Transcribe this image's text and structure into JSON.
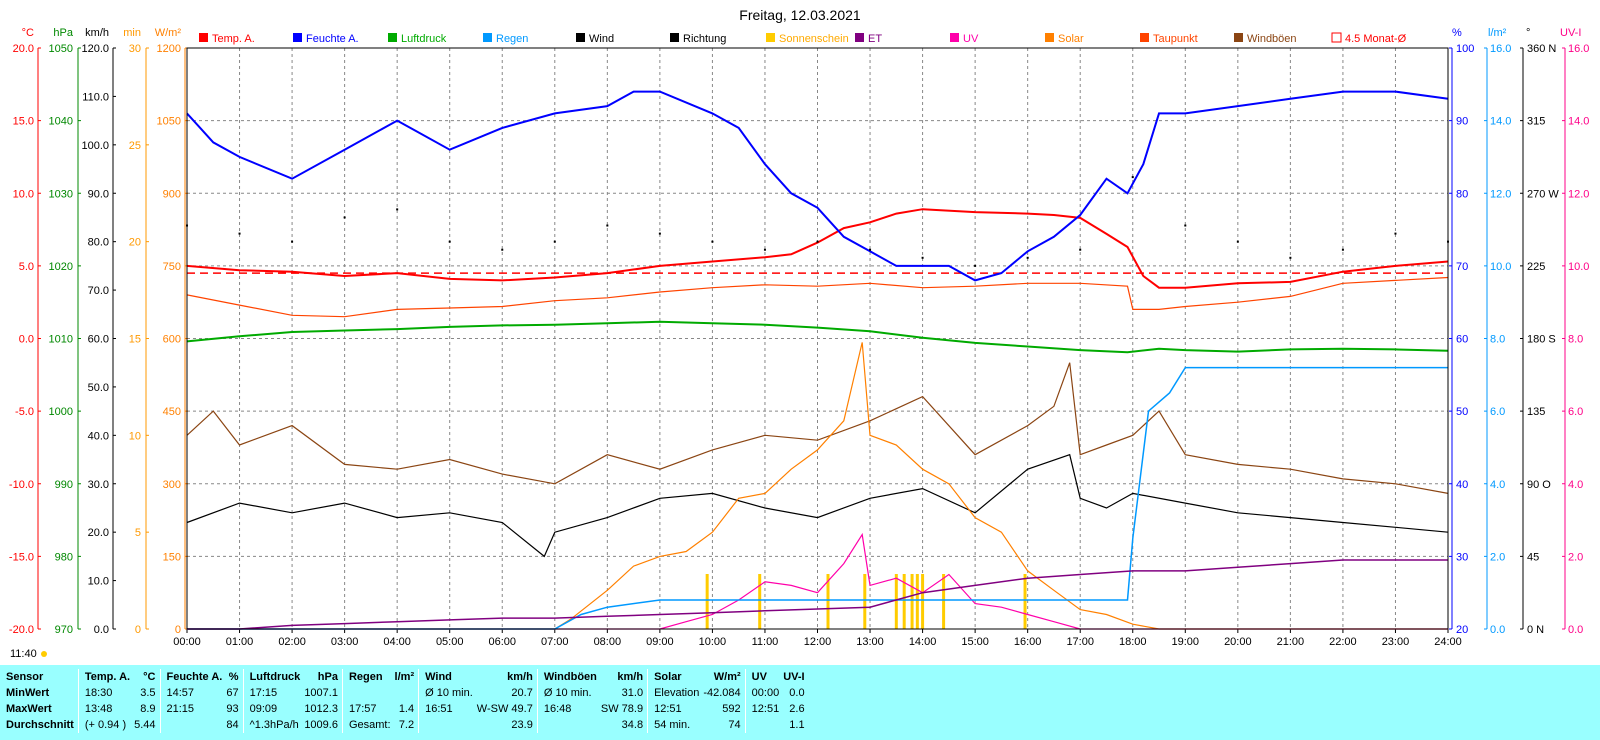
{
  "title": "Freitag, 12.03.2021",
  "time_label": "11:40",
  "legend": [
    {
      "label": "Temp. A.",
      "color": "#ff0000"
    },
    {
      "label": "Feuchte A.",
      "color": "#0000ff"
    },
    {
      "label": "Luftdruck",
      "color": "#00aa00"
    },
    {
      "label": "Regen",
      "color": "#0099ff"
    },
    {
      "label": "Wind",
      "color": "#000000"
    },
    {
      "label": "Richtung",
      "color": "#000000"
    },
    {
      "label": "Sonnenschein",
      "color": "#ffcc00"
    },
    {
      "label": "ET",
      "color": "#800080"
    },
    {
      "label": "UV",
      "color": "#ff00aa"
    },
    {
      "label": "Solar",
      "color": "#ff8000"
    },
    {
      "label": "Taupunkt",
      "color": "#ff4400"
    },
    {
      "label": "Windböen",
      "color": "#8b4513"
    },
    {
      "label": "4.5 Monat-Ø",
      "color": "#ff0000"
    }
  ],
  "axes": {
    "left": [
      {
        "unit": "°C",
        "color": "#ff0000",
        "ticks": [
          "20.0",
          "15.0",
          "10.0",
          "5.0",
          "0.0",
          "-5.0",
          "-10.0",
          "-15.0",
          "-20.0"
        ]
      },
      {
        "unit": "hPa",
        "color": "#008800",
        "ticks": [
          "1050",
          "1040",
          "1030",
          "1020",
          "1010",
          "1000",
          "990",
          "980",
          "970"
        ]
      },
      {
        "unit": "km/h",
        "color": "#000000",
        "ticks": [
          "120.0",
          "110.0",
          "100.0",
          "90.0",
          "80.0",
          "70.0",
          "60.0",
          "50.0",
          "40.0",
          "30.0",
          "20.0",
          "10.0",
          "0.0"
        ]
      },
      {
        "unit": "min",
        "color": "#ff9900",
        "ticks": [
          "30",
          "25",
          "20",
          "15",
          "10",
          "5",
          "0"
        ]
      },
      {
        "unit": "W/m²",
        "color": "#ff8000",
        "ticks": [
          "1200",
          "1050",
          "900",
          "750",
          "600",
          "450",
          "300",
          "150",
          "0"
        ]
      }
    ],
    "right": [
      {
        "unit": "%",
        "color": "#0000ff",
        "ticks": [
          "100",
          "90",
          "80",
          "70",
          "60",
          "50",
          "40",
          "30",
          "20"
        ]
      },
      {
        "unit": "l/m²",
        "color": "#0099ff",
        "ticks": [
          "16.0",
          "14.0",
          "12.0",
          "10.0",
          "8.0",
          "6.0",
          "4.0",
          "2.0",
          "0.0"
        ]
      },
      {
        "unit": "°",
        "color": "#000000",
        "ticks": [
          "360 N",
          "315",
          "270 W",
          "225",
          "180 S",
          "135",
          "90 O",
          "45",
          "0 N"
        ]
      },
      {
        "unit": "UV-I",
        "color": "#ff0088",
        "ticks": [
          "16.0",
          "14.0",
          "12.0",
          "10.0",
          "8.0",
          "6.0",
          "4.0",
          "2.0",
          "0.0"
        ]
      }
    ],
    "x_ticks": [
      "00:00",
      "01:00",
      "02:00",
      "03:00",
      "04:00",
      "05:00",
      "06:00",
      "07:00",
      "08:00",
      "09:00",
      "10:00",
      "11:00",
      "12:00",
      "13:00",
      "14:00",
      "15:00",
      "16:00",
      "17:00",
      "18:00",
      "19:00",
      "20:00",
      "21:00",
      "22:00",
      "23:00",
      "24:00"
    ]
  },
  "chart_data": {
    "type": "line",
    "title": "Freitag, 12.03.2021",
    "x_unit": "hour of day",
    "xlim": [
      0,
      24
    ],
    "grid": true,
    "series": [
      {
        "name": "Temp. A.",
        "axis": "°C",
        "ylim": [
          -20,
          20
        ],
        "x": [
          0,
          1,
          2,
          3,
          4,
          5,
          6,
          7,
          8,
          9,
          10,
          11,
          11.5,
          12,
          12.5,
          13,
          13.5,
          14,
          15,
          16,
          16.5,
          17,
          17.5,
          17.9,
          18.2,
          18.5,
          19,
          20,
          21,
          22,
          23,
          24
        ],
        "y": [
          5.0,
          4.7,
          4.6,
          4.3,
          4.5,
          4.1,
          4.0,
          4.2,
          4.5,
          5.0,
          5.3,
          5.6,
          5.8,
          6.6,
          7.6,
          8.0,
          8.6,
          8.9,
          8.7,
          8.6,
          8.5,
          8.3,
          7.2,
          6.3,
          4.3,
          3.5,
          3.5,
          3.8,
          3.9,
          4.6,
          5.0,
          5.3
        ]
      },
      {
        "name": "4.5 Monat-Ø",
        "axis": "°C",
        "ylim": [
          -20,
          20
        ],
        "x": [
          0,
          24
        ],
        "y": [
          4.5,
          4.5
        ]
      },
      {
        "name": "Taupunkt",
        "axis": "°C",
        "ylim": [
          -20,
          20
        ],
        "x": [
          0,
          1,
          2,
          3,
          4,
          5,
          6,
          7,
          8,
          9,
          10,
          11,
          12,
          13,
          14,
          15,
          16,
          17,
          17.9,
          18.0,
          18.5,
          19,
          20,
          21,
          22,
          23,
          24
        ],
        "y": [
          3.0,
          2.3,
          1.6,
          1.5,
          2.0,
          2.1,
          2.2,
          2.6,
          2.8,
          3.2,
          3.5,
          3.7,
          3.6,
          3.8,
          3.5,
          3.6,
          3.8,
          3.8,
          3.6,
          2.0,
          2.0,
          2.2,
          2.5,
          2.9,
          3.8,
          4.0,
          4.2
        ]
      },
      {
        "name": "Feuchte A.",
        "axis": "%",
        "ylim": [
          20,
          100
        ],
        "x": [
          0,
          0.5,
          1,
          2,
          3,
          4,
          5,
          6,
          7,
          8,
          8.5,
          9,
          10,
          10.5,
          11,
          11.5,
          12,
          12.5,
          13,
          13.5,
          14,
          14.5,
          15,
          15.5,
          16,
          16.5,
          17,
          17.5,
          17.9,
          18.2,
          18.5,
          19,
          20,
          21,
          22,
          23,
          24
        ],
        "y": [
          91,
          87,
          85,
          82,
          86,
          90,
          86,
          89,
          91,
          92,
          94,
          94,
          91,
          89,
          84,
          80,
          78,
          74,
          72,
          70,
          70,
          70,
          68,
          69,
          72,
          74,
          77,
          82,
          80,
          84,
          91,
          91,
          92,
          93,
          94,
          94,
          93
        ]
      },
      {
        "name": "Luftdruck",
        "axis": "hPa",
        "ylim": [
          970,
          1050
        ],
        "x": [
          0,
          1,
          2,
          3,
          4,
          5,
          6,
          7,
          8,
          9,
          10,
          11,
          12,
          13,
          14,
          15,
          16,
          17,
          17.9,
          18.5,
          19,
          20,
          21,
          22,
          23,
          24
        ],
        "y": [
          1009.6,
          1010.3,
          1010.9,
          1011.1,
          1011.3,
          1011.6,
          1011.8,
          1011.9,
          1012.1,
          1012.3,
          1012.1,
          1011.9,
          1011.5,
          1011.0,
          1010.1,
          1009.4,
          1008.9,
          1008.4,
          1008.1,
          1008.6,
          1008.4,
          1008.2,
          1008.5,
          1008.6,
          1008.5,
          1008.3
        ]
      },
      {
        "name": "Wind",
        "axis": "km/h",
        "ylim": [
          0,
          120
        ],
        "x": [
          0,
          1,
          2,
          3,
          4,
          5,
          6,
          6.8,
          7,
          8,
          9,
          10,
          11,
          12,
          13,
          14,
          15,
          16,
          16.8,
          17,
          17.5,
          18,
          19,
          20,
          21,
          22,
          23,
          24
        ],
        "y": [
          22,
          26,
          24,
          26,
          23,
          24,
          22,
          15,
          20,
          23,
          27,
          28,
          25,
          23,
          27,
          29,
          24,
          33,
          36,
          27,
          25,
          28,
          26,
          24,
          23,
          22,
          21,
          20
        ]
      },
      {
        "name": "Windböen",
        "axis": "km/h",
        "ylim": [
          0,
          120
        ],
        "x": [
          0,
          0.5,
          1,
          2,
          3,
          4,
          5,
          6,
          7,
          8,
          9,
          10,
          11,
          12,
          13,
          14,
          15,
          16,
          16.5,
          16.8,
          17,
          17.5,
          18,
          18.5,
          19,
          20,
          21,
          22,
          23,
          24
        ],
        "y": [
          40,
          45,
          38,
          42,
          34,
          33,
          35,
          32,
          30,
          36,
          33,
          37,
          40,
          39,
          43,
          48,
          36,
          42,
          46,
          55,
          36,
          38,
          40,
          45,
          36,
          34,
          33,
          31,
          30,
          28
        ]
      },
      {
        "name": "Solar",
        "axis": "W/m²",
        "ylim": [
          0,
          1200
        ],
        "x": [
          0,
          7,
          7.3,
          8,
          8.5,
          9,
          9.5,
          10,
          10.5,
          11,
          11.5,
          12,
          12.5,
          12.85,
          13,
          13.5,
          14,
          14.5,
          15,
          15.5,
          16,
          16.5,
          17,
          17.5,
          18,
          18.5,
          24
        ],
        "y": [
          0,
          0,
          20,
          80,
          130,
          150,
          160,
          200,
          270,
          280,
          330,
          370,
          430,
          592,
          400,
          380,
          330,
          300,
          230,
          200,
          120,
          80,
          40,
          30,
          10,
          0,
          0
        ]
      },
      {
        "name": "UV",
        "axis": "UV-I",
        "ylim": [
          0,
          16
        ],
        "x": [
          0,
          9,
          9.5,
          10,
          10.5,
          11,
          11.5,
          12,
          12.5,
          12.85,
          13,
          13.5,
          14,
          14.5,
          15,
          15.5,
          16,
          16.5,
          17,
          24
        ],
        "y": [
          0,
          0,
          0.2,
          0.4,
          0.8,
          1.3,
          1.2,
          1.0,
          1.8,
          2.6,
          1.2,
          1.4,
          1.0,
          1.5,
          0.7,
          0.6,
          0.4,
          0.2,
          0,
          0
        ]
      },
      {
        "name": "Regen",
        "axis": "l/m²",
        "ylim": [
          0,
          16
        ],
        "x": [
          0,
          1,
          7,
          7.5,
          8,
          9,
          10,
          16,
          17,
          17.9,
          18.0,
          18.3,
          18.7,
          19,
          20,
          21,
          22,
          23,
          24
        ],
        "y": [
          0,
          0,
          0,
          0.4,
          0.6,
          0.8,
          0.8,
          0.8,
          0.8,
          0.8,
          2.5,
          6.0,
          6.5,
          7.2,
          7.2,
          7.2,
          7.2,
          7.2,
          7.2
        ]
      },
      {
        "name": "ET",
        "axis": "l/m²",
        "ylim": [
          0,
          16
        ],
        "x": [
          0,
          1,
          2,
          3,
          4,
          5,
          6,
          7,
          8,
          9,
          10,
          11,
          12,
          13,
          14,
          15,
          16,
          17,
          18,
          19,
          20,
          21,
          22,
          23,
          24
        ],
        "y": [
          0,
          0,
          0.1,
          0.15,
          0.2,
          0.25,
          0.3,
          0.3,
          0.35,
          0.4,
          0.45,
          0.5,
          0.55,
          0.6,
          1.0,
          1.2,
          1.4,
          1.5,
          1.6,
          1.6,
          1.7,
          1.8,
          1.9,
          1.9,
          1.9
        ]
      },
      {
        "name": "Richtung",
        "axis": "°",
        "ylim": [
          0,
          360
        ],
        "x": [
          0,
          1,
          2,
          3,
          4,
          5,
          6,
          7,
          8,
          9,
          10,
          11,
          12,
          13,
          14,
          15,
          16,
          17,
          18,
          19,
          20,
          21,
          22,
          23,
          24
        ],
        "y": [
          250,
          245,
          240,
          255,
          260,
          240,
          235,
          240,
          250,
          245,
          240,
          235,
          240,
          235,
          230,
          225,
          230,
          235,
          280,
          250,
          240,
          230,
          235,
          245,
          240
        ]
      }
    ]
  },
  "stats": {
    "header": [
      "Sensor",
      "Temp. A.",
      "°C",
      "Feuchte A.",
      "%",
      "Luftdruck",
      "hPa",
      "Regen",
      "l/m²",
      "Wind",
      "km/h",
      "Windböen",
      "km/h",
      "Solar",
      "W/m²",
      "UV",
      "UV-I"
    ],
    "rows": [
      [
        "MinWert",
        "18:30",
        "3.5",
        "14:57",
        "67",
        "17:15",
        "1007.1",
        "",
        "",
        "Ø 10 min.",
        "20.7",
        "Ø 10 min.",
        "31.0",
        "Elevation",
        "-42.084",
        "00:00",
        "0.0"
      ],
      [
        "MaxWert",
        "13:48",
        "8.9",
        "21:15",
        "93",
        "09:09",
        "1012.3",
        "17:57",
        "1.4",
        "16:51",
        "W-SW 49.7",
        "16:48",
        "SW 78.9",
        "12:51",
        "592",
        "12:51",
        "2.6"
      ],
      [
        "Durchschnitt",
        "(+ 0.94 )",
        "5.44",
        "",
        "84",
        "^1.3hPa/h",
        "1009.6",
        "Gesamt:",
        "7.2",
        "",
        "23.9",
        "",
        "34.8",
        "54 min.",
        "74",
        "",
        "1.1"
      ]
    ]
  }
}
